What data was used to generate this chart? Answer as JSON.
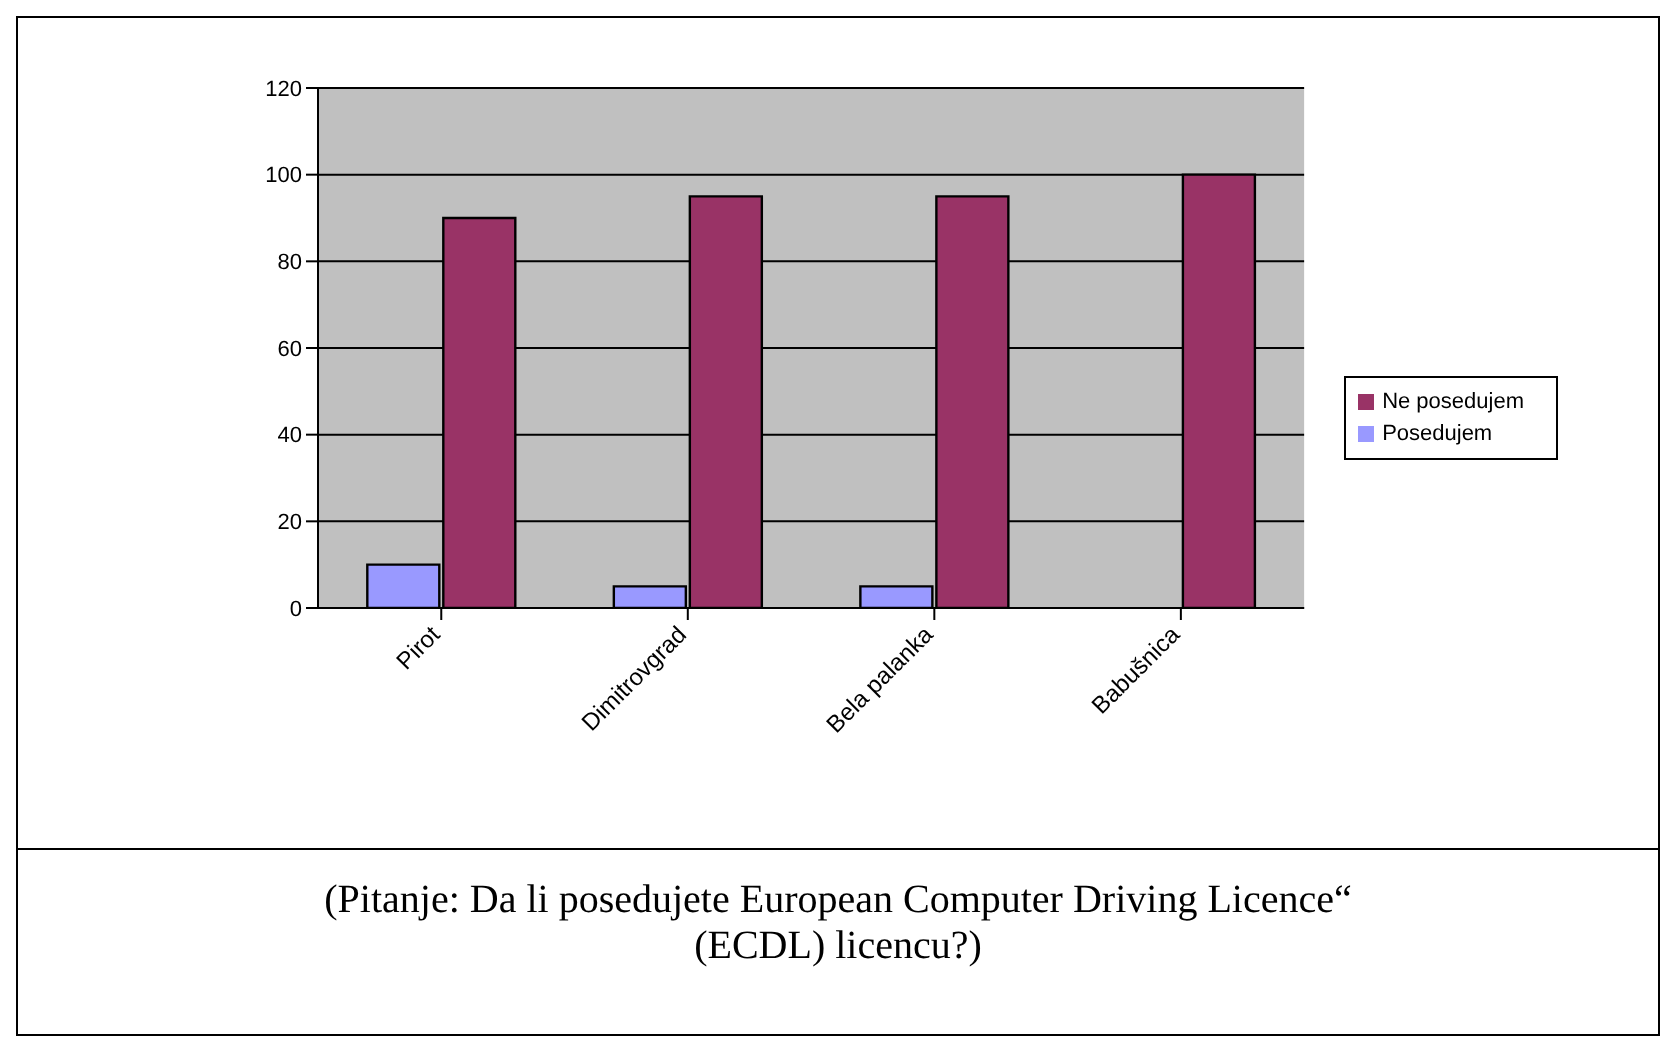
{
  "chart_data": {
    "type": "bar",
    "categories": [
      "Pirot",
      "Dimitrovgrad",
      "Bela palanka",
      "Babušnica"
    ],
    "series": [
      {
        "name": "Posedujem",
        "color": "#9999ff",
        "values": [
          10,
          5,
          5,
          0
        ]
      },
      {
        "name": "Ne posedujem",
        "color": "#993366",
        "values": [
          90,
          95,
          95,
          100
        ]
      }
    ],
    "ylim": [
      0,
      120
    ],
    "yticks": [
      0,
      20,
      40,
      60,
      80,
      100,
      120
    ],
    "grid": "y",
    "legend": "right",
    "annotations": [
      "(Pitanje: Da li posedujete European Computer Driving Licence“ (ECDL) licencu?)"
    ]
  }
}
